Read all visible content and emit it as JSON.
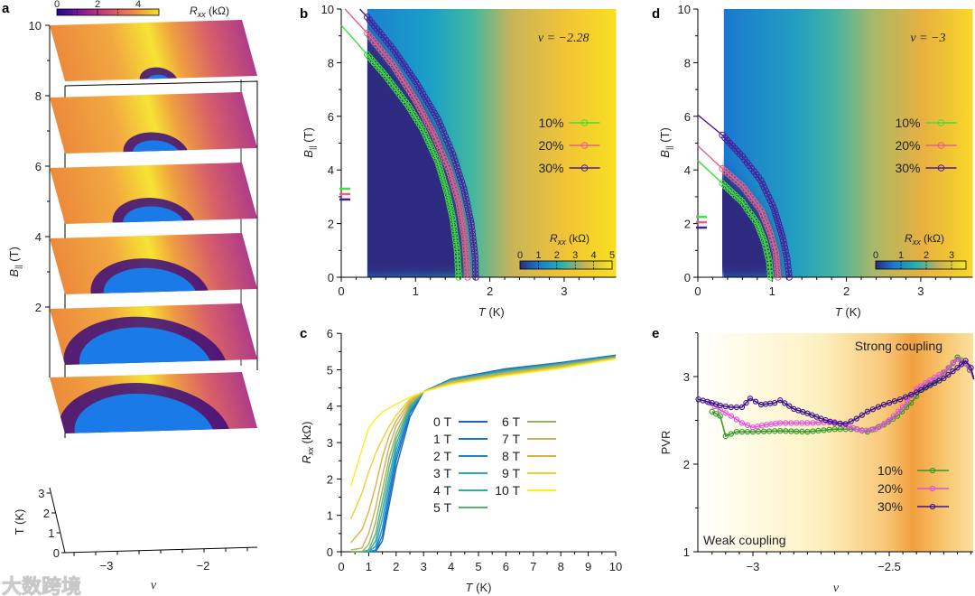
{
  "panel_labels": {
    "a": "a",
    "b": "b",
    "c": "c",
    "d": "d",
    "e": "e"
  },
  "watermark": "大数跨境",
  "chart_data": [
    {
      "id": "a",
      "type": "heatmap",
      "title": "",
      "colorbar": {
        "label_main": "R",
        "label_sub": "xx",
        "label_unit": " (kΩ)",
        "ticks": [
          "0",
          "2",
          "4"
        ],
        "range": [
          0,
          5
        ],
        "colors": [
          "#1a0a8a",
          "#8a1a9a",
          "#d04870",
          "#f08a40",
          "#f8e030"
        ]
      },
      "zlabel_main": "B",
      "zlabel_sub": "||",
      "zlabel_unit": " (T)",
      "z_ticks": [
        "10",
        "8",
        "6",
        "4",
        "2"
      ],
      "ylabel": "T (K)",
      "y_ticks": [
        "0",
        "1",
        "2",
        "3"
      ],
      "xlabel": "ν",
      "x_ticks": [
        "−3",
        "−2"
      ],
      "slices_B": [
        10,
        8,
        6,
        4,
        2,
        0
      ],
      "superconducting_extent": [
        0.06,
        0.12,
        0.16,
        0.24,
        0.34,
        0.36
      ]
    },
    {
      "id": "b",
      "type": "scatter",
      "annotation": "ν = −2.28",
      "xlabel": "T (K)",
      "ylabel_main": "B",
      "ylabel_sub": "||",
      "ylabel_unit": " (T)",
      "xlim": [
        0,
        3.7
      ],
      "ylim": [
        0,
        10
      ],
      "x_ticks": [
        "0",
        "1",
        "2",
        "3"
      ],
      "y_ticks": [
        "0",
        "2",
        "4",
        "6",
        "8",
        "10"
      ],
      "colorbar": {
        "label_main": "R",
        "label_sub": "xx",
        "label_unit": " (kΩ)",
        "ticks": [
          "0",
          "1",
          "2",
          "3",
          "4",
          "5"
        ]
      },
      "pauli_limit_markers": [
        3.3,
        3.1,
        2.9
      ],
      "series": [
        {
          "name": "10%",
          "color": "#3ee03a",
          "points": [
            [
              0,
              9.4
            ],
            [
              0.35,
              8.3
            ],
            [
              0.6,
              7.5
            ],
            [
              0.9,
              6.4
            ],
            [
              1.1,
              5.5
            ],
            [
              1.3,
              4.3
            ],
            [
              1.42,
              3.2
            ],
            [
              1.5,
              2.2
            ],
            [
              1.56,
              1
            ],
            [
              1.58,
              0
            ]
          ]
        },
        {
          "name": "20%",
          "color": "#e8608a",
          "points": [
            [
              0.05,
              10
            ],
            [
              0.35,
              9.1
            ],
            [
              0.7,
              7.9
            ],
            [
              1.0,
              6.6
            ],
            [
              1.25,
              5.3
            ],
            [
              1.45,
              4
            ],
            [
              1.58,
              2.8
            ],
            [
              1.66,
              1.5
            ],
            [
              1.7,
              0
            ]
          ]
        },
        {
          "name": "30%",
          "color": "#4a1a9a",
          "points": [
            [
              0.25,
              10
            ],
            [
              0.35,
              9.7
            ],
            [
              0.7,
              8.5
            ],
            [
              1.0,
              7.3
            ],
            [
              1.3,
              5.9
            ],
            [
              1.5,
              4.6
            ],
            [
              1.65,
              3.3
            ],
            [
              1.75,
              2
            ],
            [
              1.8,
              0.8
            ],
            [
              1.81,
              0
            ]
          ]
        }
      ]
    },
    {
      "id": "c",
      "type": "line",
      "xlabel": "T (K)",
      "ylabel_main": "R",
      "ylabel_sub": "xx",
      "ylabel_unit": " (kΩ)",
      "xlim": [
        0,
        10
      ],
      "ylim": [
        0,
        6
      ],
      "x_ticks": [
        "0",
        "1",
        "2",
        "3",
        "4",
        "5",
        "6",
        "7",
        "8",
        "9",
        "10"
      ],
      "y_ticks": [
        "0",
        "1",
        "2",
        "3",
        "4",
        "5",
        "6"
      ],
      "x": [
        0.35,
        0.75,
        1,
        1.25,
        1.5,
        1.75,
        2,
        2.5,
        3,
        4,
        6,
        8,
        10
      ],
      "series": [
        {
          "name": "0 T",
          "color": "#1a64c8",
          "values": [
            0,
            0,
            0,
            0,
            0.3,
            1.3,
            2.3,
            3.7,
            4.4,
            4.75,
            5.03,
            5.2,
            5.4
          ]
        },
        {
          "name": "1 T",
          "color": "#1a72c0",
          "values": [
            0,
            0,
            0,
            0,
            0.45,
            1.5,
            2.5,
            3.8,
            4.4,
            4.74,
            5.02,
            5.19,
            5.39
          ]
        },
        {
          "name": "2 T",
          "color": "#1a86c4",
          "values": [
            0,
            0,
            0,
            0.05,
            0.65,
            1.7,
            2.65,
            3.85,
            4.4,
            4.73,
            5.0,
            5.18,
            5.38
          ]
        },
        {
          "name": "3 T",
          "color": "#2aa4c8",
          "values": [
            0,
            0,
            0,
            0.15,
            0.9,
            1.9,
            2.8,
            3.9,
            4.4,
            4.72,
            4.98,
            5.17,
            5.37
          ]
        },
        {
          "name": "4 T",
          "color": "#3aa89a",
          "values": [
            0,
            0,
            0,
            0.3,
            1.15,
            2.1,
            2.95,
            3.95,
            4.4,
            4.71,
            4.97,
            5.16,
            5.36
          ]
        },
        {
          "name": "5 T",
          "color": "#5cb070",
          "values": [
            0,
            0,
            0.05,
            0.5,
            1.4,
            2.35,
            3.1,
            4.0,
            4.4,
            4.7,
            4.95,
            5.14,
            5.35
          ]
        },
        {
          "name": "6 T",
          "color": "#98b068",
          "values": [
            0,
            0,
            0.2,
            0.8,
            1.7,
            2.6,
            3.25,
            4.05,
            4.4,
            4.68,
            4.93,
            5.12,
            5.34
          ]
        },
        {
          "name": "7 T",
          "color": "#c8b060",
          "values": [
            0.05,
            0.1,
            0.5,
            1.2,
            2.1,
            2.9,
            3.45,
            4.1,
            4.4,
            4.66,
            4.9,
            5.1,
            5.33
          ]
        },
        {
          "name": "8 T",
          "color": "#e0b040",
          "values": [
            0.25,
            0.6,
            1.1,
            1.8,
            2.6,
            3.2,
            3.6,
            4.15,
            4.4,
            4.64,
            4.88,
            5.08,
            5.32
          ]
        },
        {
          "name": "9 T",
          "color": "#f0d030",
          "values": [
            0.9,
            1.6,
            2.2,
            2.7,
            3.1,
            3.45,
            3.75,
            4.2,
            4.4,
            4.62,
            4.86,
            5.06,
            5.31
          ]
        },
        {
          "name": "10 T",
          "color": "#f8f020",
          "values": [
            1.8,
            2.8,
            3.4,
            3.65,
            3.85,
            3.95,
            4.05,
            4.25,
            4.4,
            4.6,
            4.84,
            5.04,
            5.3
          ]
        }
      ]
    },
    {
      "id": "d",
      "type": "scatter",
      "annotation": "ν = −3",
      "xlabel": "T (K)",
      "ylabel_main": "B",
      "ylabel_sub": "||",
      "ylabel_unit": " (T)",
      "xlim": [
        0,
        3.7
      ],
      "ylim": [
        0,
        10
      ],
      "x_ticks": [
        "0",
        "1",
        "2",
        "3"
      ],
      "y_ticks": [
        "0",
        "2",
        "4",
        "6",
        "8",
        "10"
      ],
      "colorbar": {
        "label_main": "R",
        "label_sub": "xx",
        "label_unit": " (kΩ)",
        "ticks": [
          "0",
          "1",
          "2",
          "3"
        ]
      },
      "pauli_limit_markers": [
        2.25,
        2.05,
        1.85
      ],
      "series": [
        {
          "name": "10%",
          "color": "#3ee03a",
          "points": [
            [
              0,
              4.35
            ],
            [
              0.33,
              3.5
            ],
            [
              0.6,
              2.8
            ],
            [
              0.8,
              2.0
            ],
            [
              0.9,
              1.3
            ],
            [
              0.96,
              0.6
            ],
            [
              0.98,
              0
            ]
          ]
        },
        {
          "name": "20%",
          "color": "#e8608a",
          "points": [
            [
              0,
              4.9
            ],
            [
              0.33,
              4.05
            ],
            [
              0.6,
              3.4
            ],
            [
              0.85,
              2.5
            ],
            [
              0.98,
              1.6
            ],
            [
              1.05,
              0.9
            ],
            [
              1.08,
              0
            ]
          ]
        },
        {
          "name": "30%",
          "color": "#4a1a9a",
          "points": [
            [
              0,
              6.05
            ],
            [
              0.33,
              5.3
            ],
            [
              0.6,
              4.5
            ],
            [
              0.85,
              3.6
            ],
            [
              1.02,
              2.6
            ],
            [
              1.14,
              1.5
            ],
            [
              1.2,
              0.7
            ],
            [
              1.23,
              0
            ]
          ]
        }
      ]
    },
    {
      "id": "e",
      "type": "line",
      "xlabel": "ν",
      "ylabel": "PVR",
      "xlim": [
        -3.2,
        -2.19
      ],
      "ylim": [
        1,
        3.5
      ],
      "x_ticks": [
        "−3",
        "−2.5"
      ],
      "x_tick_values": [
        -3,
        -2.5
      ],
      "y_ticks": [
        "1",
        "2",
        "3"
      ],
      "annotations": [
        "Strong coupling",
        "Weak coupling"
      ],
      "series": [
        {
          "name": "10%",
          "color": "#2e9a22",
          "points": [
            [
              -3.15,
              2.6
            ],
            [
              -3.12,
              2.55
            ],
            [
              -3.1,
              2.32
            ],
            [
              -3.06,
              2.37
            ],
            [
              -3.0,
              2.37
            ],
            [
              -2.9,
              2.38
            ],
            [
              -2.8,
              2.37
            ],
            [
              -2.7,
              2.4
            ],
            [
              -2.62,
              2.4
            ],
            [
              -2.58,
              2.37
            ],
            [
              -2.52,
              2.45
            ],
            [
              -2.47,
              2.55
            ],
            [
              -2.42,
              2.7
            ],
            [
              -2.38,
              2.85
            ],
            [
              -2.33,
              2.95
            ],
            [
              -2.28,
              3.1
            ],
            [
              -2.25,
              3.22
            ],
            [
              -2.22,
              3.15
            ],
            [
              -2.19,
              3.0
            ]
          ]
        },
        {
          "name": "20%",
          "color": "#e050e0",
          "points": [
            [
              -3.16,
              2.7
            ],
            [
              -3.12,
              2.62
            ],
            [
              -3.08,
              2.55
            ],
            [
              -3.04,
              2.47
            ],
            [
              -3.0,
              2.42
            ],
            [
              -2.95,
              2.45
            ],
            [
              -2.9,
              2.47
            ],
            [
              -2.8,
              2.47
            ],
            [
              -2.7,
              2.48
            ],
            [
              -2.65,
              2.43
            ],
            [
              -2.6,
              2.38
            ],
            [
              -2.55,
              2.4
            ],
            [
              -2.5,
              2.5
            ],
            [
              -2.45,
              2.65
            ],
            [
              -2.4,
              2.86
            ],
            [
              -2.35,
              2.96
            ],
            [
              -2.3,
              3.05
            ],
            [
              -2.25,
              3.2
            ],
            [
              -2.21,
              3.12
            ],
            [
              -2.19,
              2.97
            ]
          ]
        },
        {
          "name": "30%",
          "color": "#3a1090",
          "points": [
            [
              -3.2,
              2.74
            ],
            [
              -3.15,
              2.7
            ],
            [
              -3.12,
              2.67
            ],
            [
              -3.08,
              2.65
            ],
            [
              -3.04,
              2.65
            ],
            [
              -3.01,
              2.75
            ],
            [
              -2.97,
              2.68
            ],
            [
              -2.92,
              2.7
            ],
            [
              -2.9,
              2.73
            ],
            [
              -2.85,
              2.63
            ],
            [
              -2.8,
              2.58
            ],
            [
              -2.75,
              2.52
            ],
            [
              -2.7,
              2.47
            ],
            [
              -2.66,
              2.46
            ],
            [
              -2.62,
              2.52
            ],
            [
              -2.58,
              2.6
            ],
            [
              -2.52,
              2.68
            ],
            [
              -2.46,
              2.74
            ],
            [
              -2.4,
              2.82
            ],
            [
              -2.35,
              2.9
            ],
            [
              -2.3,
              2.98
            ],
            [
              -2.25,
              3.1
            ],
            [
              -2.22,
              3.18
            ],
            [
              -2.2,
              3.1
            ],
            [
              -2.19,
              2.97
            ]
          ]
        }
      ]
    }
  ]
}
